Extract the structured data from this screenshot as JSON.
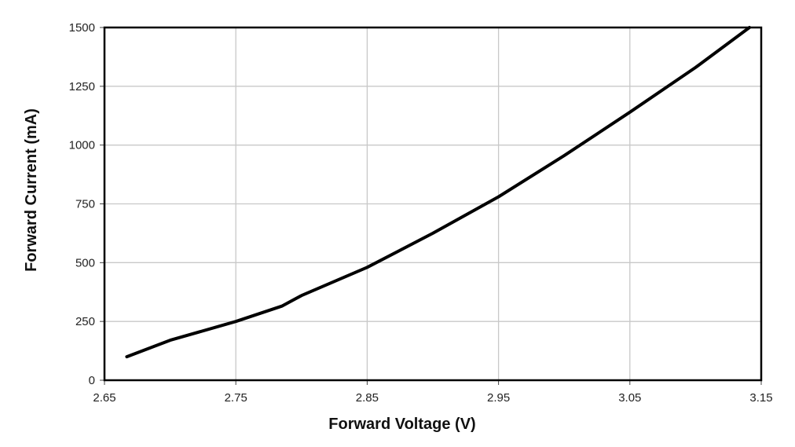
{
  "chart_data": {
    "type": "line",
    "title": "",
    "xlabel": "Forward Voltage (V)",
    "ylabel": "Forward Current (mA)",
    "xlim": [
      2.65,
      3.15
    ],
    "ylim": [
      0,
      1500
    ],
    "x_ticks": [
      "2.65",
      "2.75",
      "2.85",
      "2.95",
      "3.05",
      "3.15"
    ],
    "y_ticks": [
      "0",
      "250",
      "500",
      "750",
      "1000",
      "1250",
      "1500"
    ],
    "grid": true,
    "legend": "none",
    "series": [
      {
        "color": "#000000",
        "x": [
          2.667,
          2.7,
          2.75,
          2.785,
          2.8,
          2.85,
          2.9,
          2.95,
          3.0,
          3.05,
          3.1,
          3.141
        ],
        "y": [
          100,
          170,
          250,
          315,
          360,
          480,
          625,
          780,
          955,
          1140,
          1330,
          1500
        ]
      }
    ]
  }
}
